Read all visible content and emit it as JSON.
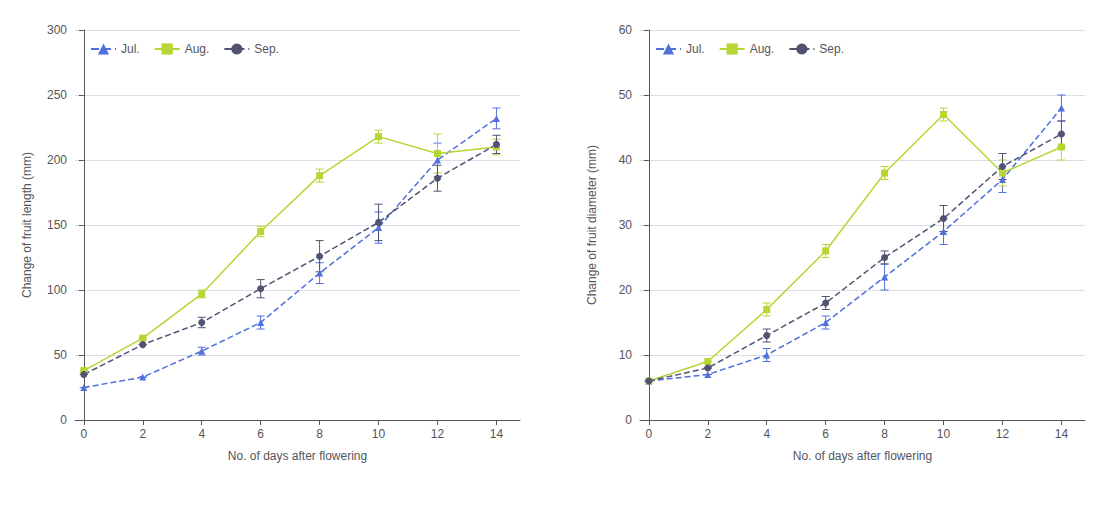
{
  "chart_data": [
    {
      "type": "line",
      "x": [
        0,
        2,
        4,
        6,
        8,
        10,
        12,
        14
      ],
      "xlim": [
        -0.3,
        14.8
      ],
      "xticks": [
        0,
        2,
        4,
        6,
        8,
        10,
        12,
        14
      ],
      "ylim": [
        0,
        300
      ],
      "yticks": [
        0,
        50,
        100,
        150,
        200,
        250,
        300
      ],
      "xlabel": "No. of days after flowering",
      "ylabel": "Change of fruit length (mm)",
      "grid": true,
      "legend": "upper left",
      "series": [
        {
          "name": "Jul.",
          "values": [
            25,
            33,
            53,
            75,
            113,
            148,
            200,
            232
          ],
          "errors": [
            0,
            0,
            3,
            5,
            8,
            12,
            13,
            8
          ],
          "marker": "triangle",
          "line_style": "dashed"
        },
        {
          "name": "Aug.",
          "values": [
            38,
            63,
            97,
            145,
            188,
            218,
            205,
            210
          ],
          "errors": [
            0,
            0,
            3,
            4,
            5,
            5,
            15,
            6
          ],
          "marker": "square",
          "line_style": "solid"
        },
        {
          "name": "Sep.",
          "values": [
            35,
            58,
            75,
            101,
            126,
            152,
            186,
            212
          ],
          "errors": [
            0,
            0,
            4,
            7,
            12,
            14,
            10,
            7
          ],
          "marker": "circle",
          "line_style": "dashed"
        }
      ]
    },
    {
      "type": "line",
      "x": [
        0,
        2,
        4,
        6,
        8,
        10,
        12,
        14
      ],
      "xlim": [
        -0.3,
        14.8
      ],
      "xticks": [
        0,
        2,
        4,
        6,
        8,
        10,
        12,
        14
      ],
      "ylim": [
        0,
        60
      ],
      "yticks": [
        0,
        10,
        20,
        30,
        40,
        50,
        60
      ],
      "xlabel": "No. of days after flowering",
      "ylabel": "Change of fruit diameter (mm)",
      "grid": true,
      "legend": "upper left",
      "series": [
        {
          "name": "Jul.",
          "values": [
            6,
            7,
            10,
            15,
            22,
            29,
            37,
            48
          ],
          "errors": [
            0,
            0,
            1,
            1,
            2,
            2,
            2,
            2
          ],
          "marker": "triangle",
          "line_style": "dashed"
        },
        {
          "name": "Aug.",
          "values": [
            6,
            9,
            17,
            26,
            38,
            47,
            38,
            42
          ],
          "errors": [
            0,
            0,
            1,
            1,
            1,
            1,
            2,
            2
          ],
          "marker": "square",
          "line_style": "solid"
        },
        {
          "name": "Sep.",
          "values": [
            6,
            8,
            13,
            18,
            25,
            31,
            39,
            44
          ],
          "errors": [
            0,
            0,
            1,
            1,
            1,
            2,
            2,
            2
          ],
          "marker": "circle",
          "line_style": "dashed"
        }
      ]
    }
  ]
}
